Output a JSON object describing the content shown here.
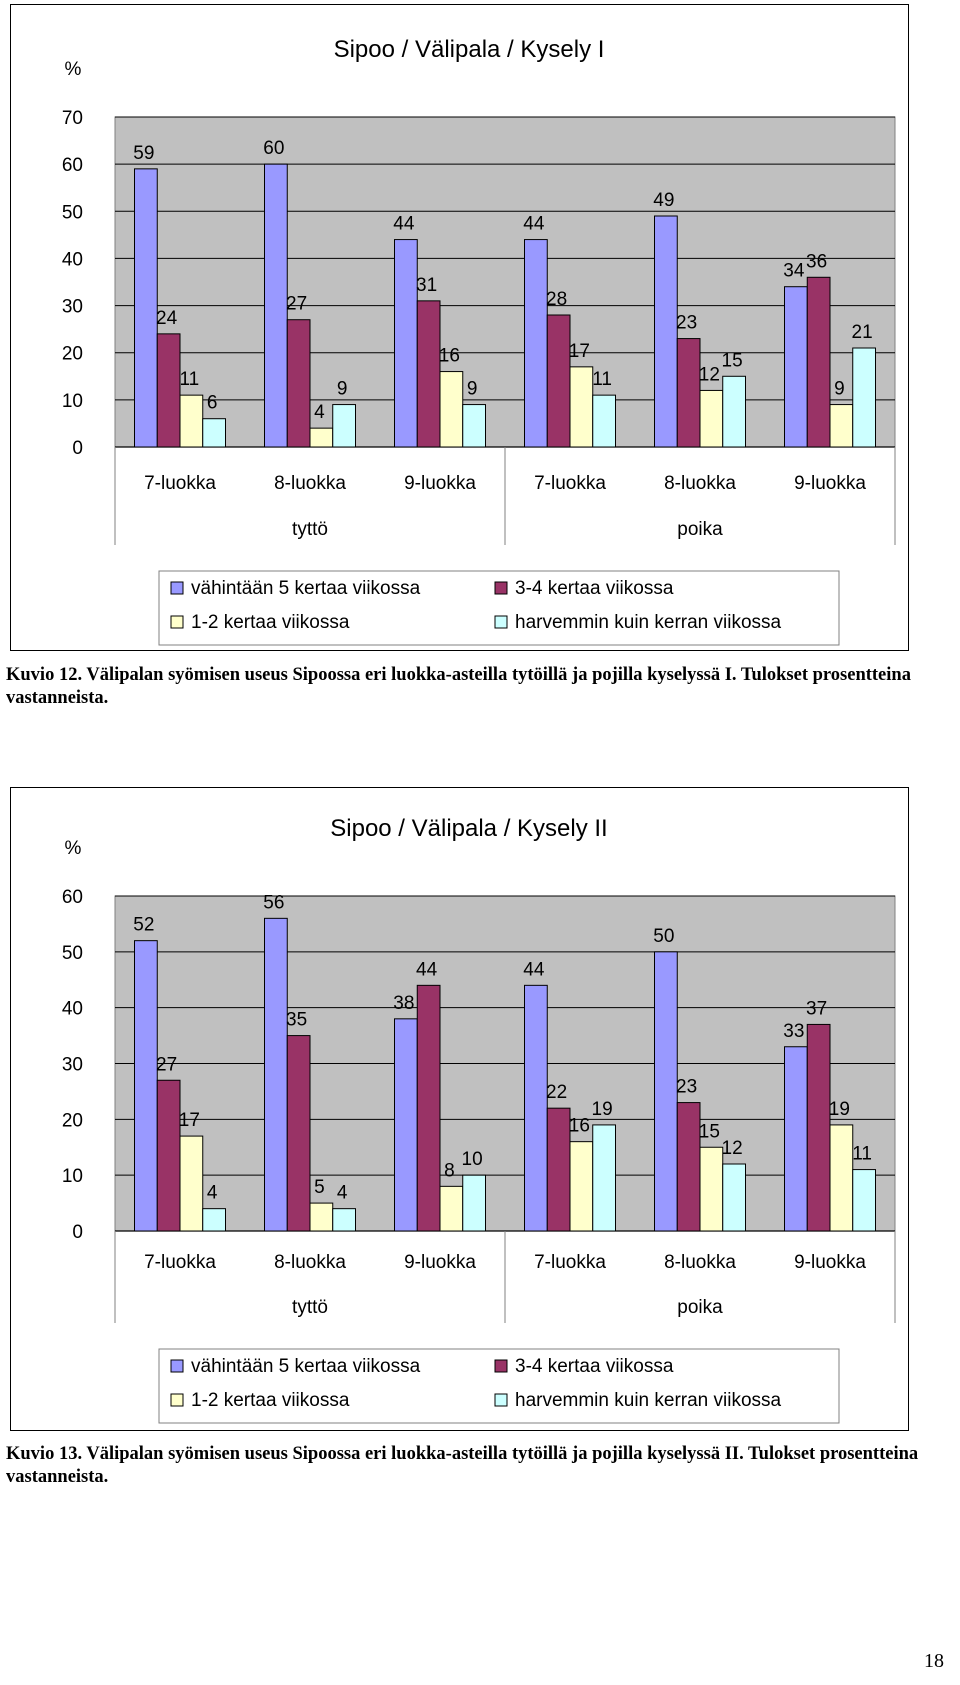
{
  "colors": {
    "plot_bg": "#c0c0c0",
    "series": [
      "#9999ff",
      "#993366",
      "#ffffcc",
      "#ccffff"
    ]
  },
  "chart_data": [
    {
      "type": "bar",
      "title": "Sipoo / Välipala / Kysely I",
      "ylabel": "%",
      "ylim": [
        0,
        70
      ],
      "yticks": [
        0,
        10,
        20,
        30,
        40,
        50,
        60,
        70
      ],
      "grid": true,
      "categories": [
        "7-luokka",
        "8-luokka",
        "9-luokka",
        "7-luokka",
        "8-luokka",
        "9-luokka"
      ],
      "groups": [
        {
          "label": "tyttö",
          "categories": [
            "7-luokka",
            "8-luokka",
            "9-luokka"
          ]
        },
        {
          "label": "poika",
          "categories": [
            "7-luokka",
            "8-luokka",
            "9-luokka"
          ]
        }
      ],
      "legend_position": "bottom",
      "series": [
        {
          "name": "vähintään 5 kertaa viikossa",
          "values": [
            59,
            60,
            44,
            44,
            49,
            34
          ]
        },
        {
          "name": "3-4 kertaa viikossa",
          "values": [
            24,
            27,
            31,
            28,
            23,
            36
          ]
        },
        {
          "name": "1-2 kertaa viikossa",
          "values": [
            11,
            4,
            16,
            17,
            12,
            9
          ]
        },
        {
          "name": "harvemmin kuin kerran viikossa",
          "values": [
            6,
            9,
            9,
            11,
            15,
            21
          ]
        }
      ]
    },
    {
      "type": "bar",
      "title": "Sipoo / Välipala / Kysely II",
      "ylabel": "%",
      "ylim": [
        0,
        60
      ],
      "yticks": [
        0,
        10,
        20,
        30,
        40,
        50,
        60
      ],
      "grid": true,
      "categories": [
        "7-luokka",
        "8-luokka",
        "9-luokka",
        "7-luokka",
        "8-luokka",
        "9-luokka"
      ],
      "groups": [
        {
          "label": "tyttö",
          "categories": [
            "7-luokka",
            "8-luokka",
            "9-luokka"
          ]
        },
        {
          "label": "poika",
          "categories": [
            "7-luokka",
            "8-luokka",
            "9-luokka"
          ]
        }
      ],
      "legend_position": "bottom",
      "series": [
        {
          "name": "vähintään 5 kertaa viikossa",
          "values": [
            52,
            56,
            38,
            44,
            50,
            33
          ]
        },
        {
          "name": "3-4 kertaa viikossa",
          "values": [
            27,
            35,
            44,
            22,
            23,
            37
          ]
        },
        {
          "name": "1-2 kertaa viikossa",
          "values": [
            17,
            5,
            8,
            16,
            15,
            19
          ]
        },
        {
          "name": "harvemmin kuin kerran viikossa",
          "values": [
            4,
            4,
            10,
            19,
            12,
            11
          ]
        }
      ]
    }
  ],
  "captions": {
    "first": "Kuvio 12. Välipalan syömisen useus Sipoossa eri luokka-asteilla tytöillä ja pojilla kyselyssä I. Tulokset prosentteina vastanneista.",
    "second": "Kuvio 13. Välipalan syömisen useus Sipoossa eri luokka-asteilla tytöillä ja pojilla kyselyssä II. Tulokset prosentteina vastanneista."
  },
  "page_number": "18"
}
